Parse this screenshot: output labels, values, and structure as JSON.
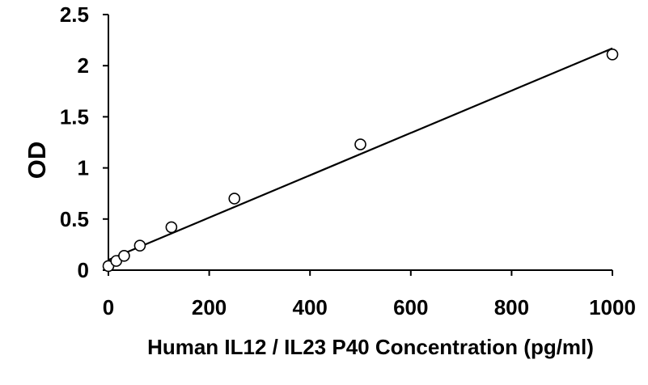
{
  "chart_data": {
    "type": "scatter",
    "title": "",
    "xlabel": "Human IL12 / IL23 P40 Concentration (pg/ml)",
    "ylabel": "OD",
    "xlim": [
      0,
      1000
    ],
    "ylim": [
      0,
      2.5
    ],
    "x_ticks": [
      0,
      200,
      400,
      600,
      800,
      1000
    ],
    "y_ticks": [
      0,
      0.5,
      1,
      1.5,
      2,
      2.5
    ],
    "x_tick_labels": [
      "0",
      "200",
      "400",
      "600",
      "800",
      "1000"
    ],
    "y_tick_labels": [
      "0",
      "0.5",
      "1",
      "1.5",
      "2",
      "2.5"
    ],
    "grid": false,
    "legend": "none",
    "series": [
      {
        "x": [
          0,
          15.6,
          31.2,
          62.5,
          125,
          250,
          500,
          1000
        ],
        "y": [
          0.04,
          0.09,
          0.14,
          0.24,
          0.42,
          0.7,
          1.23,
          2.11
        ],
        "marker": "open-circle"
      }
    ],
    "trendline": {
      "type": "linear",
      "x": [
        0,
        1000
      ],
      "y": [
        0.1,
        2.17
      ]
    },
    "colors": {
      "axis": "#000000",
      "marker_stroke": "#000000",
      "marker_fill": "#ffffff",
      "line": "#000000"
    }
  }
}
